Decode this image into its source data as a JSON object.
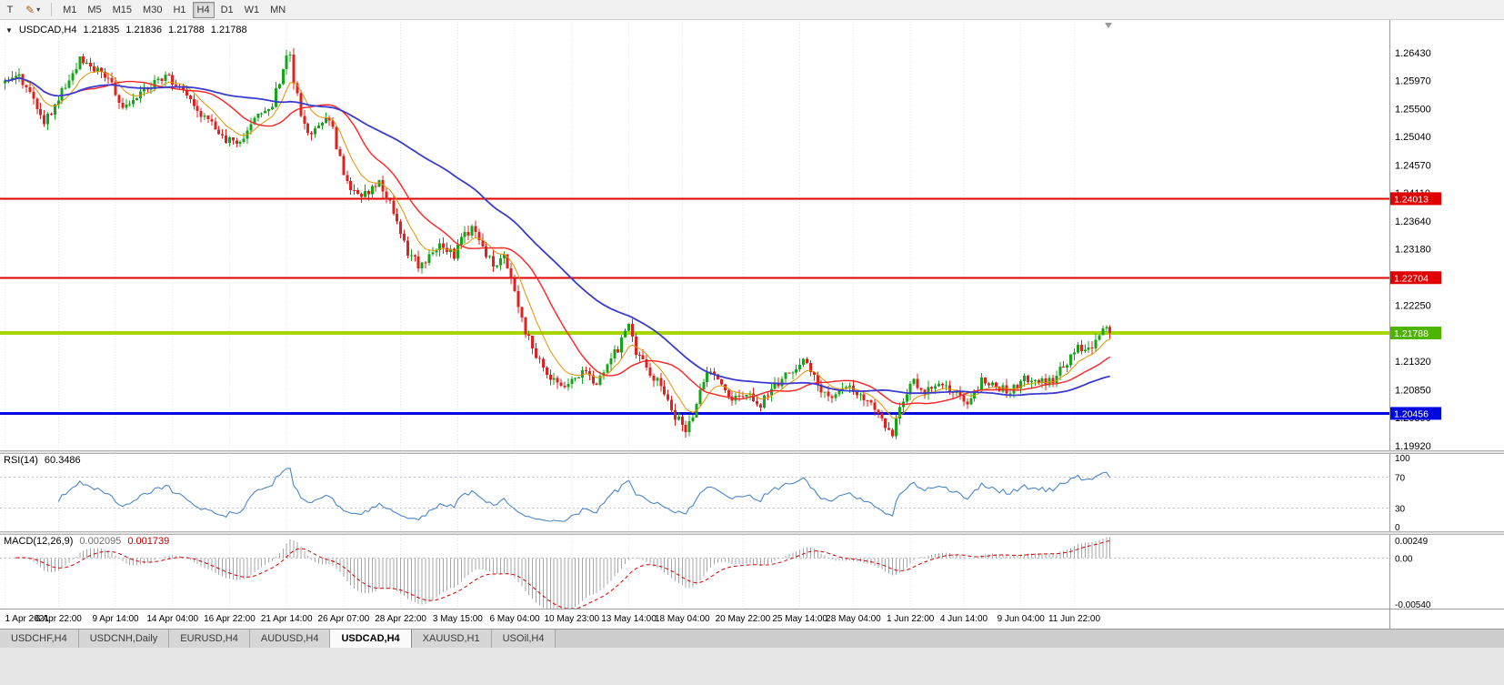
{
  "icons": {
    "quote_arrow": "▼",
    "pencil": "✎",
    "caret": "▾"
  },
  "toolbar": {
    "text_tool_label": "T",
    "timeframes": [
      {
        "label": "M1"
      },
      {
        "label": "M5"
      },
      {
        "label": "M15"
      },
      {
        "label": "M30"
      },
      {
        "label": "H1"
      },
      {
        "label": "H4",
        "active": true
      },
      {
        "label": "D1"
      },
      {
        "label": "W1"
      },
      {
        "label": "MN"
      }
    ]
  },
  "quote": {
    "symbol": "USDCAD,H4",
    "open": "1.21835",
    "high": "1.21836",
    "low": "1.21788",
    "close": "1.21788"
  },
  "indicators": {
    "rsi": {
      "label": "RSI(14)",
      "value": "60.3486",
      "levels": [
        70,
        30
      ],
      "axis": [
        "100",
        "70",
        "30",
        "0"
      ],
      "color": "#4a86c8"
    },
    "macd": {
      "label": "MACD(12,26,9)",
      "value_main": "0.002095",
      "value_signal": "0.001739",
      "axis": [
        "0.00249",
        "0.00",
        "-0.00540"
      ],
      "hist_color": "#a6a6a6",
      "signal_color": "#d80000"
    }
  },
  "chart_data": {
    "type": "candlestick",
    "symbol": "USDCAD",
    "timeframe": "H4",
    "bars": 311,
    "colors": {
      "up": "#18a31c",
      "down": "#dd2222"
    },
    "y_ticks": [
      "1.26430",
      "1.25970",
      "1.25500",
      "1.25040",
      "1.24570",
      "1.24110",
      "1.23640",
      "1.23180",
      "1.22710",
      "1.22250",
      "1.21790",
      "1.21320",
      "1.20850",
      "1.20390",
      "1.19920"
    ],
    "x_ticks": [
      {
        "bar": 0,
        "label": "1 Apr 2021"
      },
      {
        "bar": 15,
        "label": "6 Apr 22:00"
      },
      {
        "bar": 31,
        "label": "9 Apr 14:00"
      },
      {
        "bar": 47,
        "label": "14 Apr 04:00"
      },
      {
        "bar": 63,
        "label": "16 Apr 22:00"
      },
      {
        "bar": 79,
        "label": "21 Apr 14:00"
      },
      {
        "bar": 95,
        "label": "26 Apr 07:00"
      },
      {
        "bar": 111,
        "label": "28 Apr 22:00"
      },
      {
        "bar": 127,
        "label": "3 May 15:00"
      },
      {
        "bar": 143,
        "label": "6 May 04:00"
      },
      {
        "bar": 159,
        "label": "10 May 23:00"
      },
      {
        "bar": 175,
        "label": "13 May 14:00"
      },
      {
        "bar": 190,
        "label": "18 May 04:00"
      },
      {
        "bar": 207,
        "label": "20 May 22:00"
      },
      {
        "bar": 223,
        "label": "25 May 14:00"
      },
      {
        "bar": 238,
        "label": "28 May 04:00"
      },
      {
        "bar": 254,
        "label": "1 Jun 22:00"
      },
      {
        "bar": 269,
        "label": "4 Jun 14:00"
      },
      {
        "bar": 285,
        "label": "9 Jun 04:00"
      },
      {
        "bar": 300,
        "label": "11 Jun 22:00"
      }
    ],
    "hlines": [
      {
        "price": 1.24013,
        "label": "1.24013",
        "color": "#e00000",
        "width": 2,
        "label_bg": "#e00000",
        "label_fg": "#ffffff"
      },
      {
        "price": 1.22704,
        "label": "1.22704",
        "color": "#e00000",
        "width": 2,
        "label_bg": "#e00000",
        "label_fg": "#ffffff"
      },
      {
        "price": 1.21788,
        "label": "1.21788",
        "color": "#a6d500",
        "width": 4,
        "label_bg": "#4db400",
        "label_fg": "#ffffff"
      },
      {
        "price": 1.20456,
        "label": "1.20456",
        "color": "#0008e0",
        "width": 3,
        "label_bg": "#0008e0",
        "label_fg": "#ffffff"
      }
    ],
    "mas": [
      {
        "name": "ema-9",
        "period": 9,
        "type": "ema",
        "color": "#e09400",
        "width": 1
      },
      {
        "name": "sma-21",
        "period": 21,
        "type": "sma",
        "color": "#ff2222",
        "width": 1.4
      },
      {
        "name": "sma-55",
        "period": 55,
        "type": "sma",
        "color": "#3b3bd0",
        "width": 1.8
      }
    ],
    "price_anchors": [
      [
        0,
        1.2597
      ],
      [
        4,
        1.2608
      ],
      [
        8,
        1.2562
      ],
      [
        11,
        1.2528
      ],
      [
        14,
        1.2556
      ],
      [
        18,
        1.2598
      ],
      [
        21,
        1.2632
      ],
      [
        24,
        1.2621
      ],
      [
        28,
        1.2604
      ],
      [
        31,
        1.258
      ],
      [
        33,
        1.2548
      ],
      [
        36,
        1.2562
      ],
      [
        40,
        1.2582
      ],
      [
        44,
        1.2603
      ],
      [
        47,
        1.2597
      ],
      [
        50,
        1.2575
      ],
      [
        53,
        1.2556
      ],
      [
        57,
        1.2531
      ],
      [
        60,
        1.2512
      ],
      [
        62,
        1.2501
      ],
      [
        65,
        1.2488
      ],
      [
        68,
        1.2516
      ],
      [
        71,
        1.2544
      ],
      [
        75,
        1.2557
      ],
      [
        78,
        1.2617
      ],
      [
        80,
        1.2645
      ],
      [
        81,
        1.2598
      ],
      [
        83,
        1.2543
      ],
      [
        85,
        1.2507
      ],
      [
        88,
        1.2527
      ],
      [
        91,
        1.2538
      ],
      [
        93,
        1.2488
      ],
      [
        96,
        1.2424
      ],
      [
        99,
        1.2402
      ],
      [
        102,
        1.2412
      ],
      [
        105,
        1.2426
      ],
      [
        108,
        1.2394
      ],
      [
        111,
        1.2338
      ],
      [
        113,
        1.2312
      ],
      [
        116,
        1.2291
      ],
      [
        119,
        1.2308
      ],
      [
        122,
        1.2325
      ],
      [
        126,
        1.2308
      ],
      [
        129,
        1.2342
      ],
      [
        131,
        1.2351
      ],
      [
        134,
        1.2316
      ],
      [
        137,
        1.2292
      ],
      [
        140,
        1.2302
      ],
      [
        143,
        1.2252
      ],
      [
        146,
        1.2183
      ],
      [
        149,
        1.2141
      ],
      [
        153,
        1.2107
      ],
      [
        157,
        1.2086
      ],
      [
        160,
        1.2105
      ],
      [
        163,
        1.2113
      ],
      [
        166,
        1.2096
      ],
      [
        169,
        1.2131
      ],
      [
        172,
        1.2152
      ],
      [
        175,
        1.2198
      ],
      [
        177,
        1.2144
      ],
      [
        180,
        1.2122
      ],
      [
        184,
        1.2092
      ],
      [
        188,
        1.2042
      ],
      [
        191,
        1.2016
      ],
      [
        194,
        1.2061
      ],
      [
        197,
        1.2118
      ],
      [
        200,
        1.2101
      ],
      [
        204,
        1.2072
      ],
      [
        208,
        1.2082
      ],
      [
        212,
        1.2062
      ],
      [
        216,
        1.2091
      ],
      [
        220,
        1.2111
      ],
      [
        224,
        1.2133
      ],
      [
        228,
        1.2092
      ],
      [
        232,
        1.2072
      ],
      [
        236,
        1.2091
      ],
      [
        240,
        1.2077
      ],
      [
        244,
        1.2052
      ],
      [
        247,
        1.2022
      ],
      [
        249,
        1.2012
      ],
      [
        252,
        1.2068
      ],
      [
        255,
        1.2098
      ],
      [
        258,
        1.2082
      ],
      [
        262,
        1.2101
      ],
      [
        266,
        1.2082
      ],
      [
        270,
        1.2062
      ],
      [
        274,
        1.2098
      ],
      [
        278,
        1.2092
      ],
      [
        282,
        1.2081
      ],
      [
        286,
        1.2108
      ],
      [
        290,
        1.2096
      ],
      [
        294,
        1.2102
      ],
      [
        298,
        1.2129
      ],
      [
        301,
        1.2154
      ],
      [
        304,
        1.2149
      ],
      [
        307,
        1.2178
      ],
      [
        309,
        1.2196
      ],
      [
        310,
        1.2179
      ]
    ]
  },
  "tabs": [
    {
      "label": "USDCHF,H4"
    },
    {
      "label": "USDCNH,Daily"
    },
    {
      "label": "EURUSD,H4"
    },
    {
      "label": "AUDUSD,H4"
    },
    {
      "label": "USDCAD,H4",
      "active": true
    },
    {
      "label": "XAUUSD,H1"
    },
    {
      "label": "USOil,H4"
    }
  ]
}
